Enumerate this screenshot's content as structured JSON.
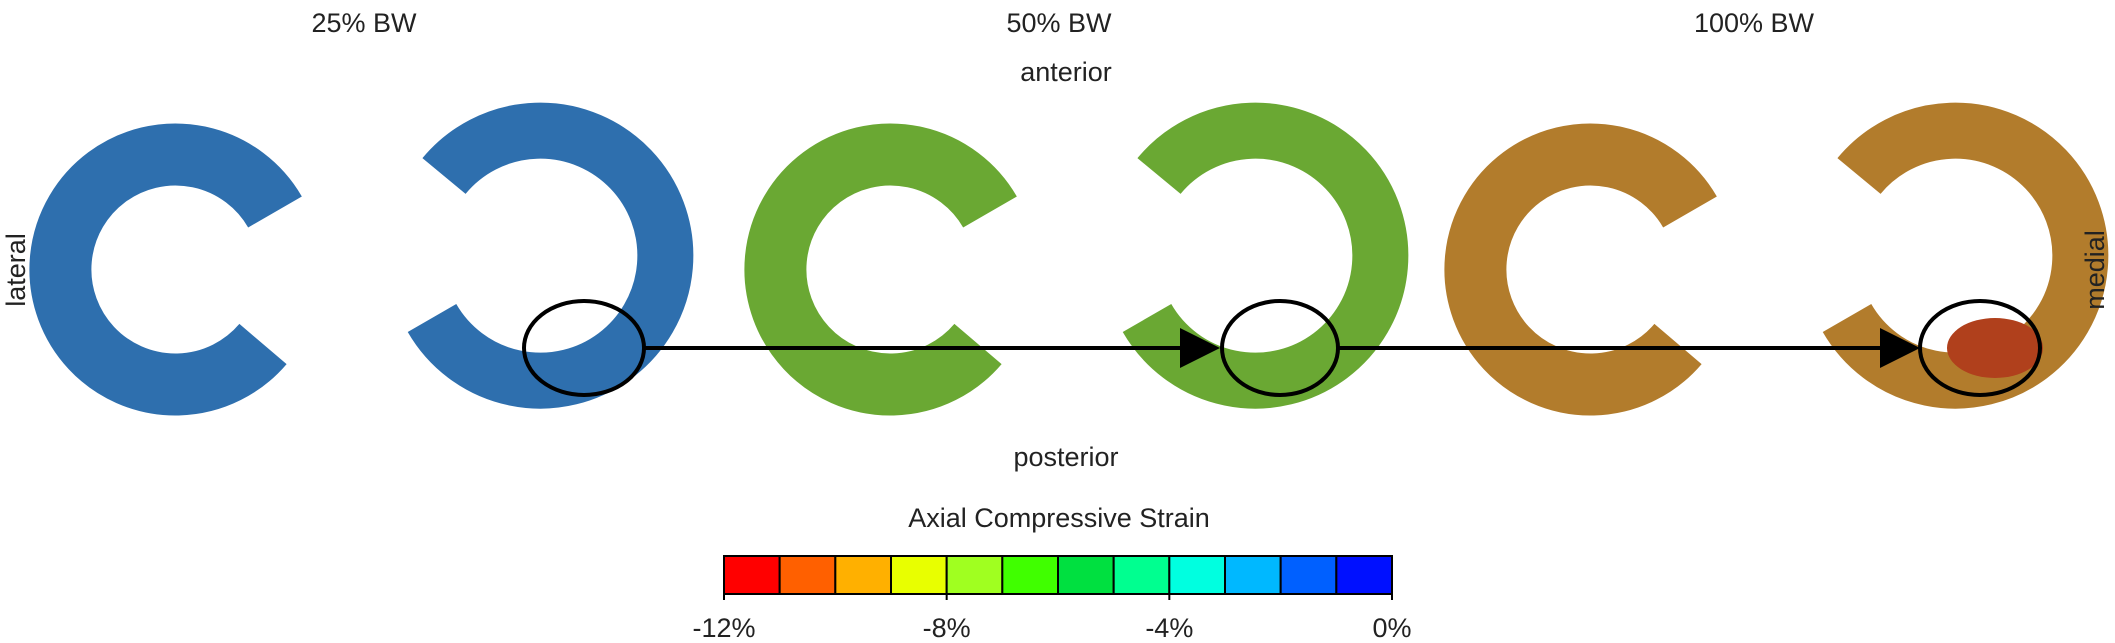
{
  "panels": [
    {
      "title": "25% BW"
    },
    {
      "title": "50% BW"
    },
    {
      "title": "100% BW"
    }
  ],
  "orientation": {
    "anterior": "anterior",
    "posterior": "posterior",
    "lateral": "lateral",
    "medial": "medial"
  },
  "colorbar": {
    "title": "Axial Compressive Strain",
    "lim": [
      -12,
      0
    ],
    "ticks": [
      {
        "value": -12,
        "label": "-12%"
      },
      {
        "value": -8,
        "label": "-8%"
      },
      {
        "value": -4,
        "label": "-4%"
      },
      {
        "value": 0,
        "label": "0%"
      }
    ],
    "colors": [
      "#ff0000",
      "#ff6000",
      "#ffb000",
      "#e8ff00",
      "#a0ff20",
      "#40ff00",
      "#00e040",
      "#00ff90",
      "#00ffe0",
      "#00b8ff",
      "#0060ff",
      "#0010ff"
    ]
  }
}
